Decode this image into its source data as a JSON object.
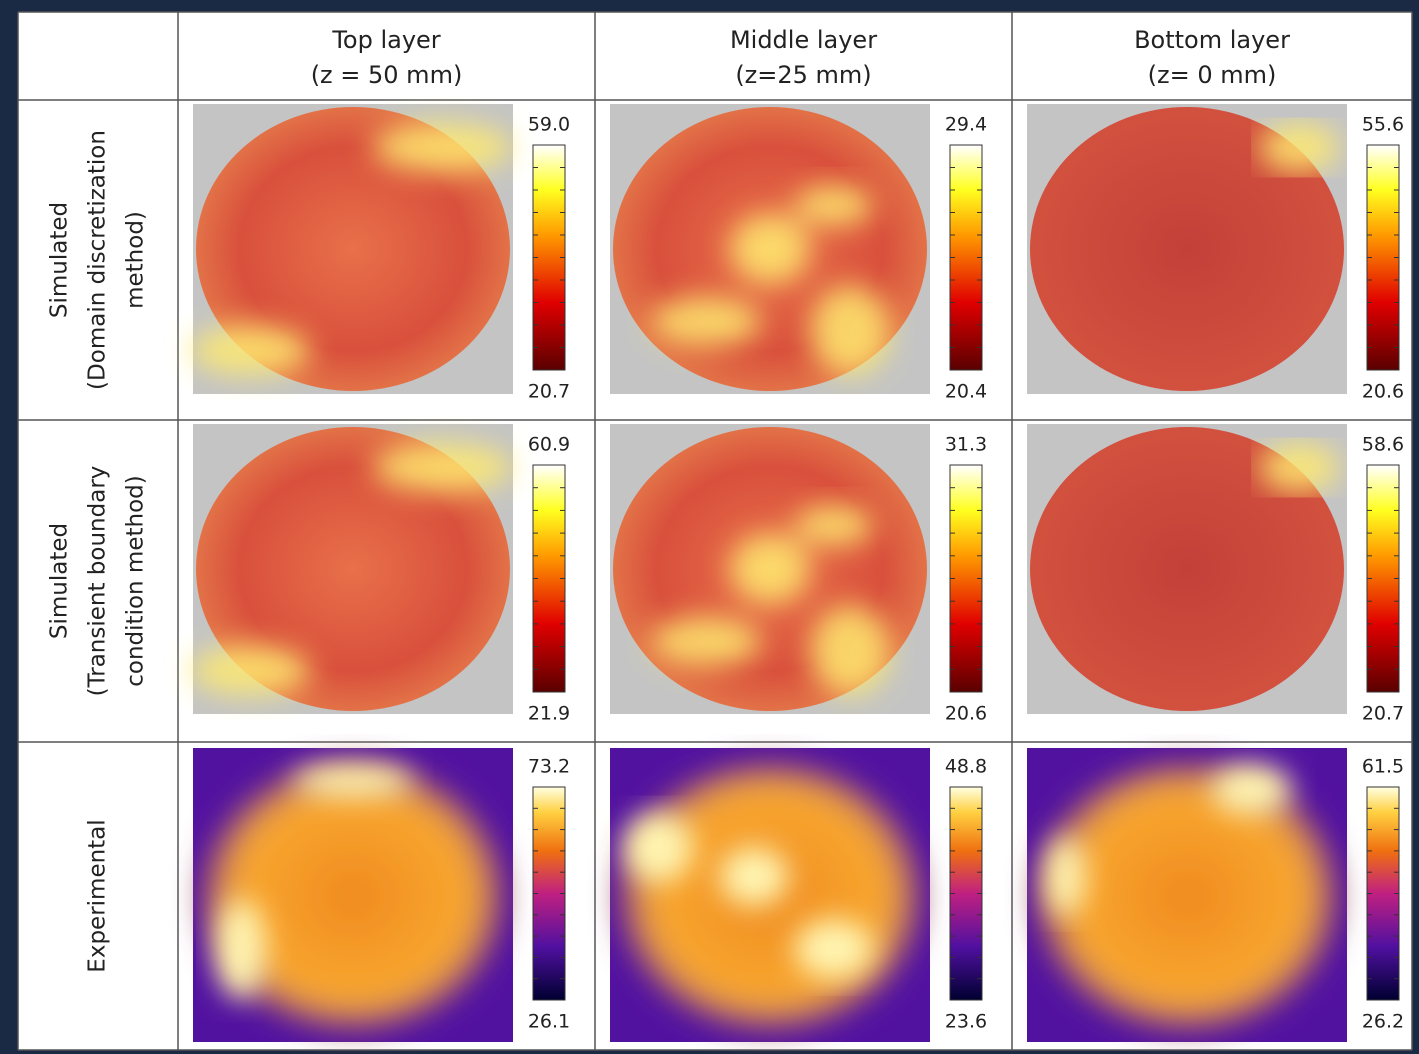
{
  "header": {
    "columns": [
      [
        "Top layer",
        "(z = 50 mm)"
      ],
      [
        "Middle layer",
        "(z=25 mm)"
      ],
      [
        "Bottom  layer",
        "(z= 0 mm)"
      ]
    ]
  },
  "rows": [
    {
      "label": [
        "Simulated",
        "(Domain discretization",
        "method)"
      ],
      "cells": [
        {
          "max": "59.0",
          "min": "20.7"
        },
        {
          "max": "29.4",
          "min": "20.4"
        },
        {
          "max": "55.6",
          "min": "20.6"
        }
      ]
    },
    {
      "label": [
        "Simulated",
        "(Transient boundary",
        "condition method)"
      ],
      "cells": [
        {
          "max": "60.9",
          "min": "21.9"
        },
        {
          "max": "31.3",
          "min": "20.6"
        },
        {
          "max": "58.6",
          "min": "20.7"
        }
      ]
    },
    {
      "label": [
        "Experimental"
      ],
      "cells": [
        {
          "max": "73.2",
          "min": "26.1"
        },
        {
          "max": "48.8",
          "min": "23.6"
        },
        {
          "max": "61.5",
          "min": "26.2"
        }
      ]
    }
  ]
}
